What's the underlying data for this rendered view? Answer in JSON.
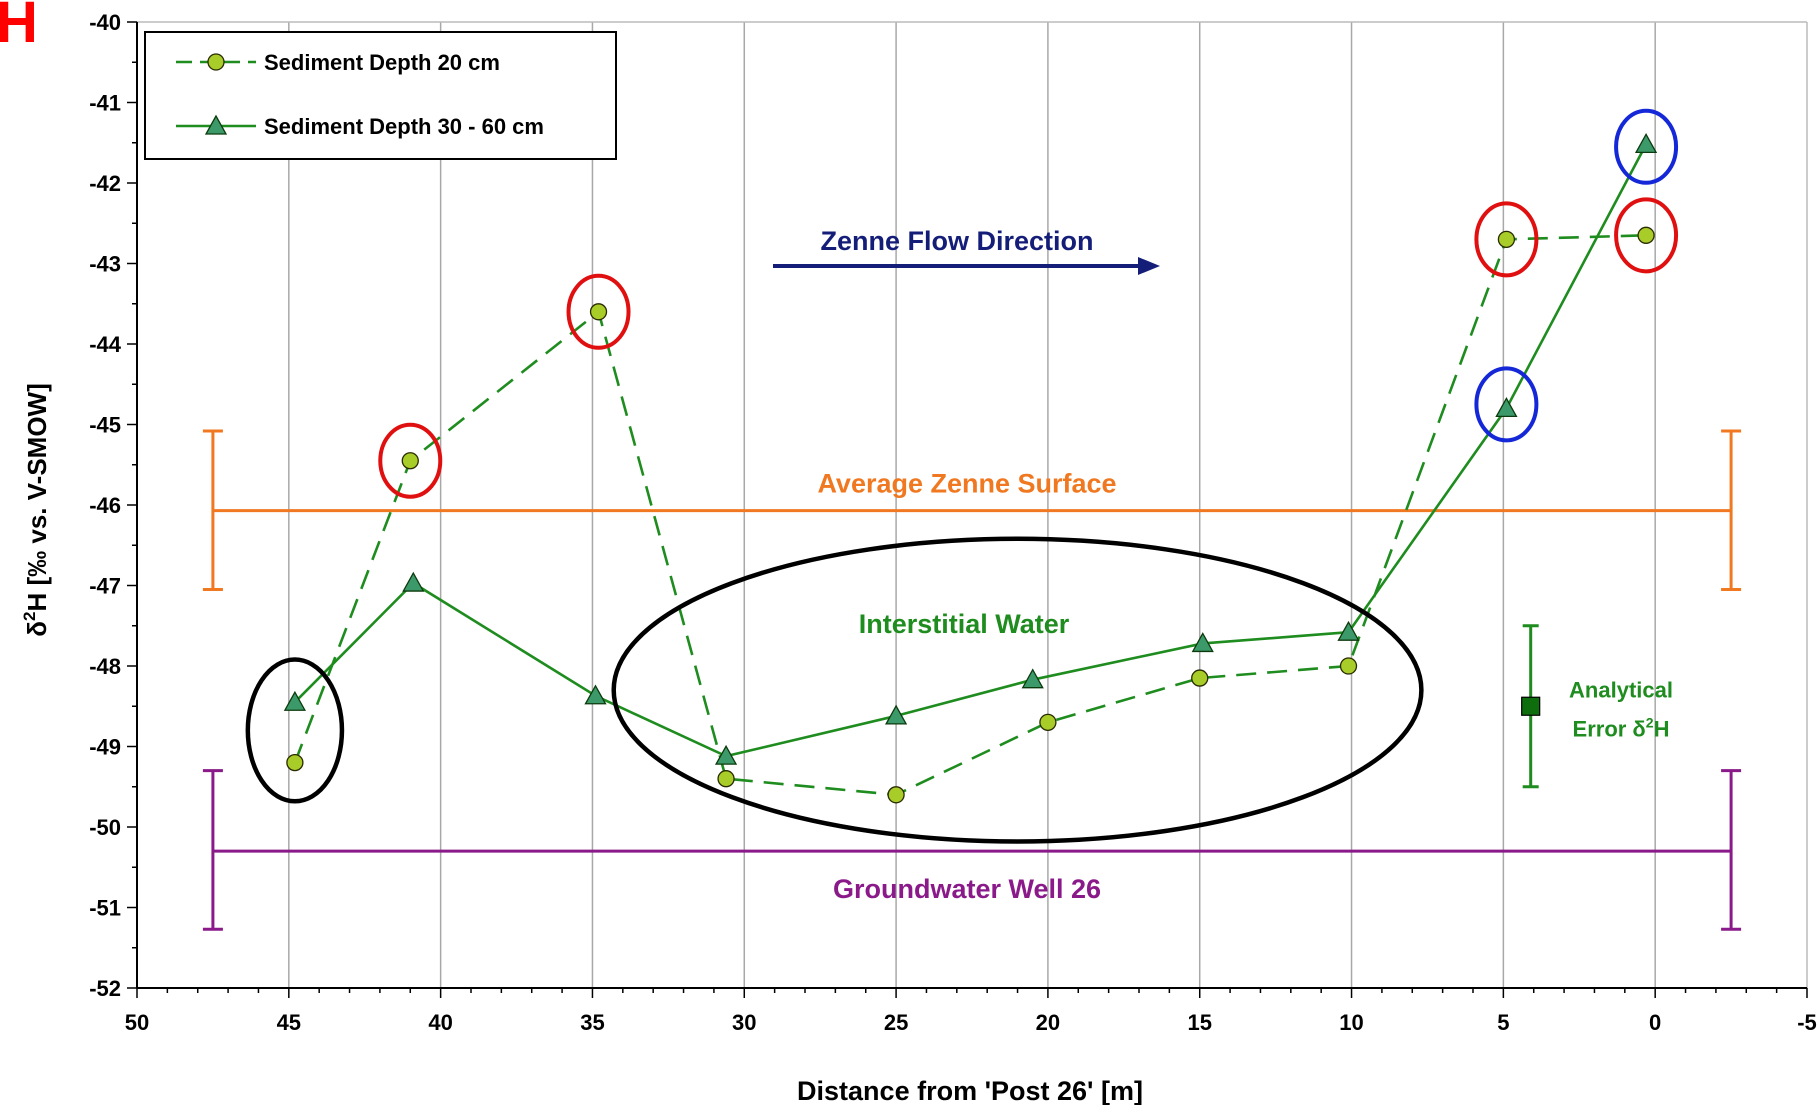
{
  "panel_letter": "H",
  "chart_data": {
    "type": "line",
    "xlabel": "Distance from 'Post 26' [m]",
    "ylabel_prefix": "δ",
    "ylabel_sup": "2",
    "ylabel_suffix": "H  [‰ vs. V-SMOW]",
    "xlim": [
      50,
      -5
    ],
    "x_reversed": true,
    "ylim": [
      -52,
      -40
    ],
    "x_ticks": [
      50,
      45,
      40,
      35,
      30,
      25,
      20,
      15,
      10,
      5,
      0,
      -5
    ],
    "y_ticks": [
      -40,
      -41,
      -42,
      -43,
      -44,
      -45,
      -46,
      -47,
      -48,
      -49,
      -50,
      -51,
      -52
    ],
    "grid": "vertical",
    "legend_position": "top-left",
    "series": [
      {
        "name": "Sediment Depth 20 cm",
        "marker": "circle",
        "line": "dashed",
        "color": "#1e8c1e",
        "marker_color": "#a8cc28",
        "points": [
          [
            44.8,
            -49.2
          ],
          [
            41,
            -45.45
          ],
          [
            34.8,
            -43.6
          ],
          [
            30.6,
            -49.4
          ],
          [
            25,
            -49.6
          ],
          [
            20,
            -48.7
          ],
          [
            15,
            -48.15
          ],
          [
            10.1,
            -48.0
          ],
          [
            4.9,
            -42.7
          ],
          [
            0.3,
            -42.65
          ]
        ]
      },
      {
        "name": "Sediment Depth 30 - 60 cm",
        "marker": "triangle",
        "line": "solid",
        "color": "#1e8c1e",
        "marker_color": "#3c9a6a",
        "points": [
          [
            44.8,
            -48.45
          ],
          [
            40.9,
            -46.97
          ],
          [
            34.9,
            -48.37
          ],
          [
            30.6,
            -49.12
          ],
          [
            25,
            -48.62
          ],
          [
            20.5,
            -48.17
          ],
          [
            14.9,
            -47.72
          ],
          [
            10.1,
            -47.58
          ],
          [
            4.9,
            -44.8
          ],
          [
            0.3,
            -41.52
          ]
        ]
      }
    ],
    "reference_bands": [
      {
        "label": "Average Zenne Surface",
        "color": "#f07820",
        "x_from": 47.5,
        "x_to": -2.5,
        "mean": -46.07,
        "low": -47.05,
        "high": -45.08
      },
      {
        "label": "Groundwater Well 26",
        "color": "#8a1a8a",
        "x_from": 47.5,
        "x_to": -2.5,
        "mean": -50.3,
        "low": -51.27,
        "high": -49.3
      }
    ],
    "analytical_error": {
      "label_line1": "Analytical",
      "label_line2_prefix": "Error δ",
      "label_line2_sup": "2",
      "label_line2_suffix": "H",
      "x": 4.1,
      "y": -48.5,
      "low": -49.5,
      "high": -47.5,
      "color": "#1e8c1e"
    },
    "annotations": {
      "flow_direction": "Zenne Flow Direction",
      "flow_color": "#141e78",
      "interstitial": "Interstitial Water",
      "interstitial_color": "#1e8c1e"
    },
    "highlight_circles": [
      {
        "x": 41,
        "y": -45.45,
        "color": "#e01010"
      },
      {
        "x": 34.8,
        "y": -43.6,
        "color": "#e01010"
      },
      {
        "x": 4.9,
        "y": -42.7,
        "color": "#e01010"
      },
      {
        "x": 0.3,
        "y": -42.65,
        "color": "#e01010"
      },
      {
        "x": 4.9,
        "y": -44.75,
        "color": "#1428d8"
      },
      {
        "x": 0.3,
        "y": -41.55,
        "color": "#1428d8"
      }
    ],
    "highlight_ellipses": [
      {
        "x_center": 44.8,
        "y_center": -48.8,
        "x_radius": 1.55,
        "y_radius": 0.88,
        "color": "#000000"
      },
      {
        "x_center": 21,
        "y_center": -48.3,
        "x_radius": 13.3,
        "y_radius": 1.88,
        "color": "#000000"
      }
    ]
  }
}
